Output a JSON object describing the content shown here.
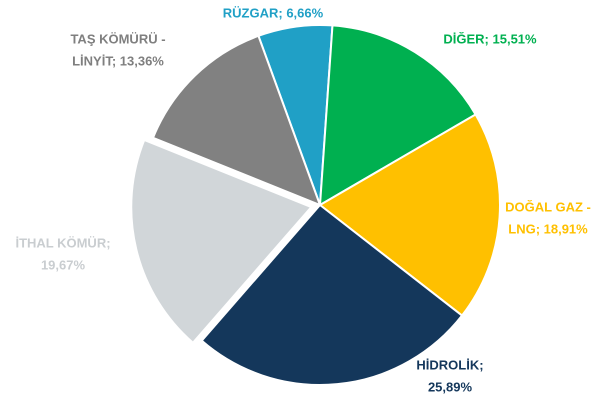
{
  "chart_data": {
    "type": "pie",
    "values": [
      6.66,
      15.51,
      18.91,
      25.89,
      19.67,
      13.36
    ],
    "value_labels": [
      [
        "RÜZGAR; 6,66%"
      ],
      [
        "DİĞER; 15,51%"
      ],
      [
        "DOĞAL GAZ -",
        "LNG; 18,91%"
      ],
      [
        "HİDROLİK;",
        "25,89%"
      ],
      [
        "İTHAL KÖMÜR;",
        "19,67%"
      ],
      [
        "TAŞ KÖMÜRÜ -",
        "LİNYİT; 13,36%"
      ]
    ],
    "colors": [
      "#20a0c6",
      "#00b050",
      "#ffc000",
      "#14375b",
      "#d1d6d9",
      "#818181"
    ],
    "label_colors": [
      "#20a0c6",
      "#00b050",
      "#ffc000",
      "#14375b",
      "#c9cdd0",
      "#7f7f7f"
    ]
  }
}
